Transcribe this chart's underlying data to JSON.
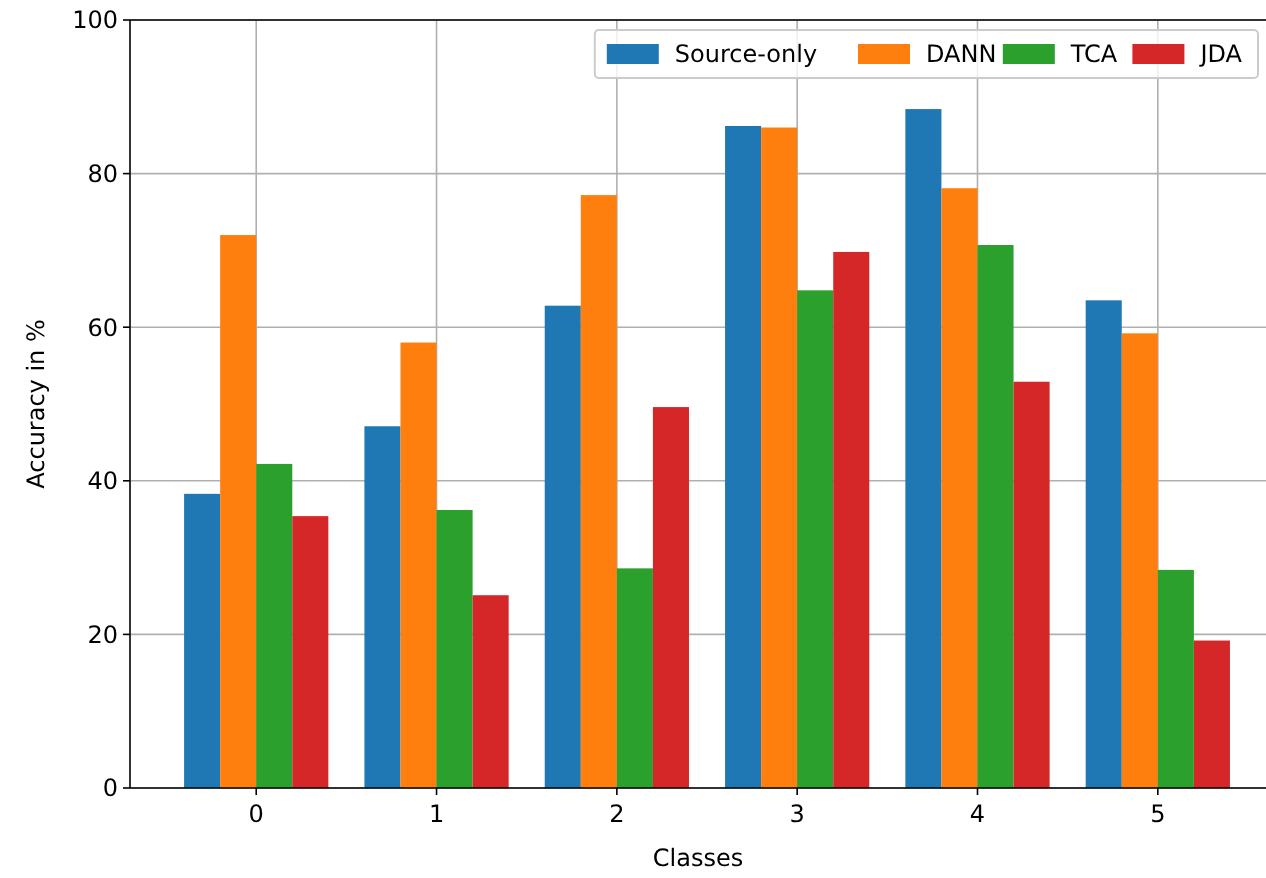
{
  "chart_data": {
    "type": "bar",
    "xlabel": "Classes",
    "ylabel": "Accuracy in %",
    "categories": [
      "0",
      "1",
      "2",
      "3",
      "4",
      "5"
    ],
    "series": [
      {
        "name": "Source-only",
        "color": "#1f77b4",
        "values": [
          38.3,
          47.1,
          62.8,
          86.2,
          88.4,
          63.5
        ]
      },
      {
        "name": "DANN",
        "color": "#ff7f0e",
        "values": [
          72.0,
          58.0,
          77.2,
          86.0,
          78.1,
          59.2
        ]
      },
      {
        "name": "TCA",
        "color": "#2ca02c",
        "values": [
          42.2,
          36.2,
          28.6,
          64.8,
          70.7,
          28.4
        ]
      },
      {
        "name": "JDA",
        "color": "#d62728",
        "values": [
          35.4,
          25.1,
          49.6,
          69.8,
          52.9,
          19.2
        ]
      }
    ],
    "ylim": [
      0,
      100
    ],
    "yticks": [
      0,
      20,
      40,
      60,
      80,
      100
    ],
    "grid": true,
    "legend": "top right"
  }
}
